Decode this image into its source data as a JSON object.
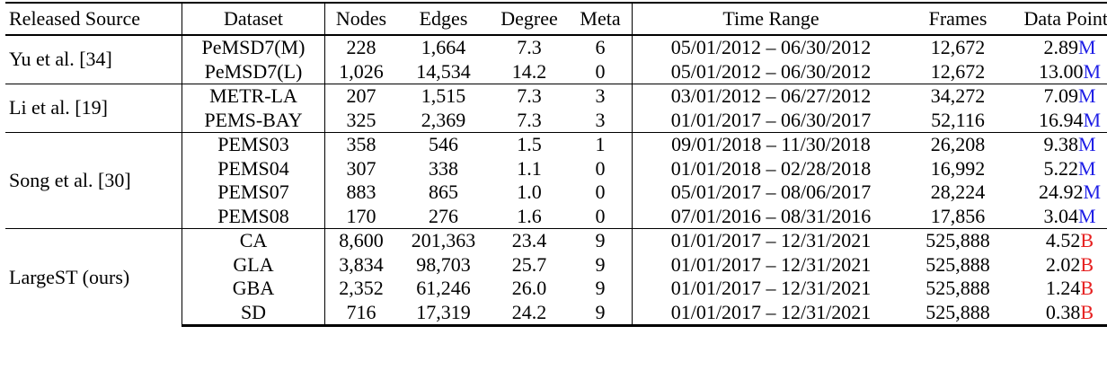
{
  "headers": {
    "source": "Released Source",
    "dataset": "Dataset",
    "nodes": "Nodes",
    "edges": "Edges",
    "degree": "Degree",
    "meta": "Meta",
    "time_range": "Time Range",
    "frames": "Frames",
    "data_points": "Data Points"
  },
  "colors": {
    "unit_m": "#1f1fe6",
    "unit_b": "#e61f1f"
  },
  "groups": [
    {
      "source": "Yu et al. [34]",
      "rows": [
        {
          "dataset": "PeMSD7(M)",
          "nodes": "228",
          "edges": "1,664",
          "degree": "7.3",
          "meta": "6",
          "time_range": "05/01/2012 – 06/30/2012",
          "frames": "12,672",
          "dp_value": "2.89",
          "dp_unit": "M"
        },
        {
          "dataset": "PeMSD7(L)",
          "nodes": "1,026",
          "edges": "14,534",
          "degree": "14.2",
          "meta": "0",
          "time_range": "05/01/2012 – 06/30/2012",
          "frames": "12,672",
          "dp_value": "13.00",
          "dp_unit": "M"
        }
      ]
    },
    {
      "source": "Li et al. [19]",
      "rows": [
        {
          "dataset": "METR-LA",
          "nodes": "207",
          "edges": "1,515",
          "degree": "7.3",
          "meta": "3",
          "time_range": "03/01/2012 – 06/27/2012",
          "frames": "34,272",
          "dp_value": "7.09",
          "dp_unit": "M"
        },
        {
          "dataset": "PEMS-BAY",
          "nodes": "325",
          "edges": "2,369",
          "degree": "7.3",
          "meta": "3",
          "time_range": "01/01/2017 – 06/30/2017",
          "frames": "52,116",
          "dp_value": "16.94",
          "dp_unit": "M"
        }
      ]
    },
    {
      "source": "Song et al. [30]",
      "rows": [
        {
          "dataset": "PEMS03",
          "nodes": "358",
          "edges": "546",
          "degree": "1.5",
          "meta": "1",
          "time_range": "09/01/2018 – 11/30/2018",
          "frames": "26,208",
          "dp_value": "9.38",
          "dp_unit": "M"
        },
        {
          "dataset": "PEMS04",
          "nodes": "307",
          "edges": "338",
          "degree": "1.1",
          "meta": "0",
          "time_range": "01/01/2018 – 02/28/2018",
          "frames": "16,992",
          "dp_value": "5.22",
          "dp_unit": "M"
        },
        {
          "dataset": "PEMS07",
          "nodes": "883",
          "edges": "865",
          "degree": "1.0",
          "meta": "0",
          "time_range": "05/01/2017 – 08/06/2017",
          "frames": "28,224",
          "dp_value": "24.92",
          "dp_unit": "M"
        },
        {
          "dataset": "PEMS08",
          "nodes": "170",
          "edges": "276",
          "degree": "1.6",
          "meta": "0",
          "time_range": "07/01/2016 – 08/31/2016",
          "frames": "17,856",
          "dp_value": "3.04",
          "dp_unit": "M"
        }
      ]
    },
    {
      "source": "LargeST (ours)",
      "rows": [
        {
          "dataset": "CA",
          "nodes": "8,600",
          "edges": "201,363",
          "degree": "23.4",
          "meta": "9",
          "time_range": "01/01/2017 – 12/31/2021",
          "frames": "525,888",
          "dp_value": "4.52",
          "dp_unit": "B"
        },
        {
          "dataset": "GLA",
          "nodes": "3,834",
          "edges": "98,703",
          "degree": "25.7",
          "meta": "9",
          "time_range": "01/01/2017 – 12/31/2021",
          "frames": "525,888",
          "dp_value": "2.02",
          "dp_unit": "B"
        },
        {
          "dataset": "GBA",
          "nodes": "2,352",
          "edges": "61,246",
          "degree": "26.0",
          "meta": "9",
          "time_range": "01/01/2017 – 12/31/2021",
          "frames": "525,888",
          "dp_value": "1.24",
          "dp_unit": "B"
        },
        {
          "dataset": "SD",
          "nodes": "716",
          "edges": "17,319",
          "degree": "24.2",
          "meta": "9",
          "time_range": "01/01/2017 – 12/31/2021",
          "frames": "525,888",
          "dp_value": "0.38",
          "dp_unit": "B"
        }
      ]
    }
  ]
}
